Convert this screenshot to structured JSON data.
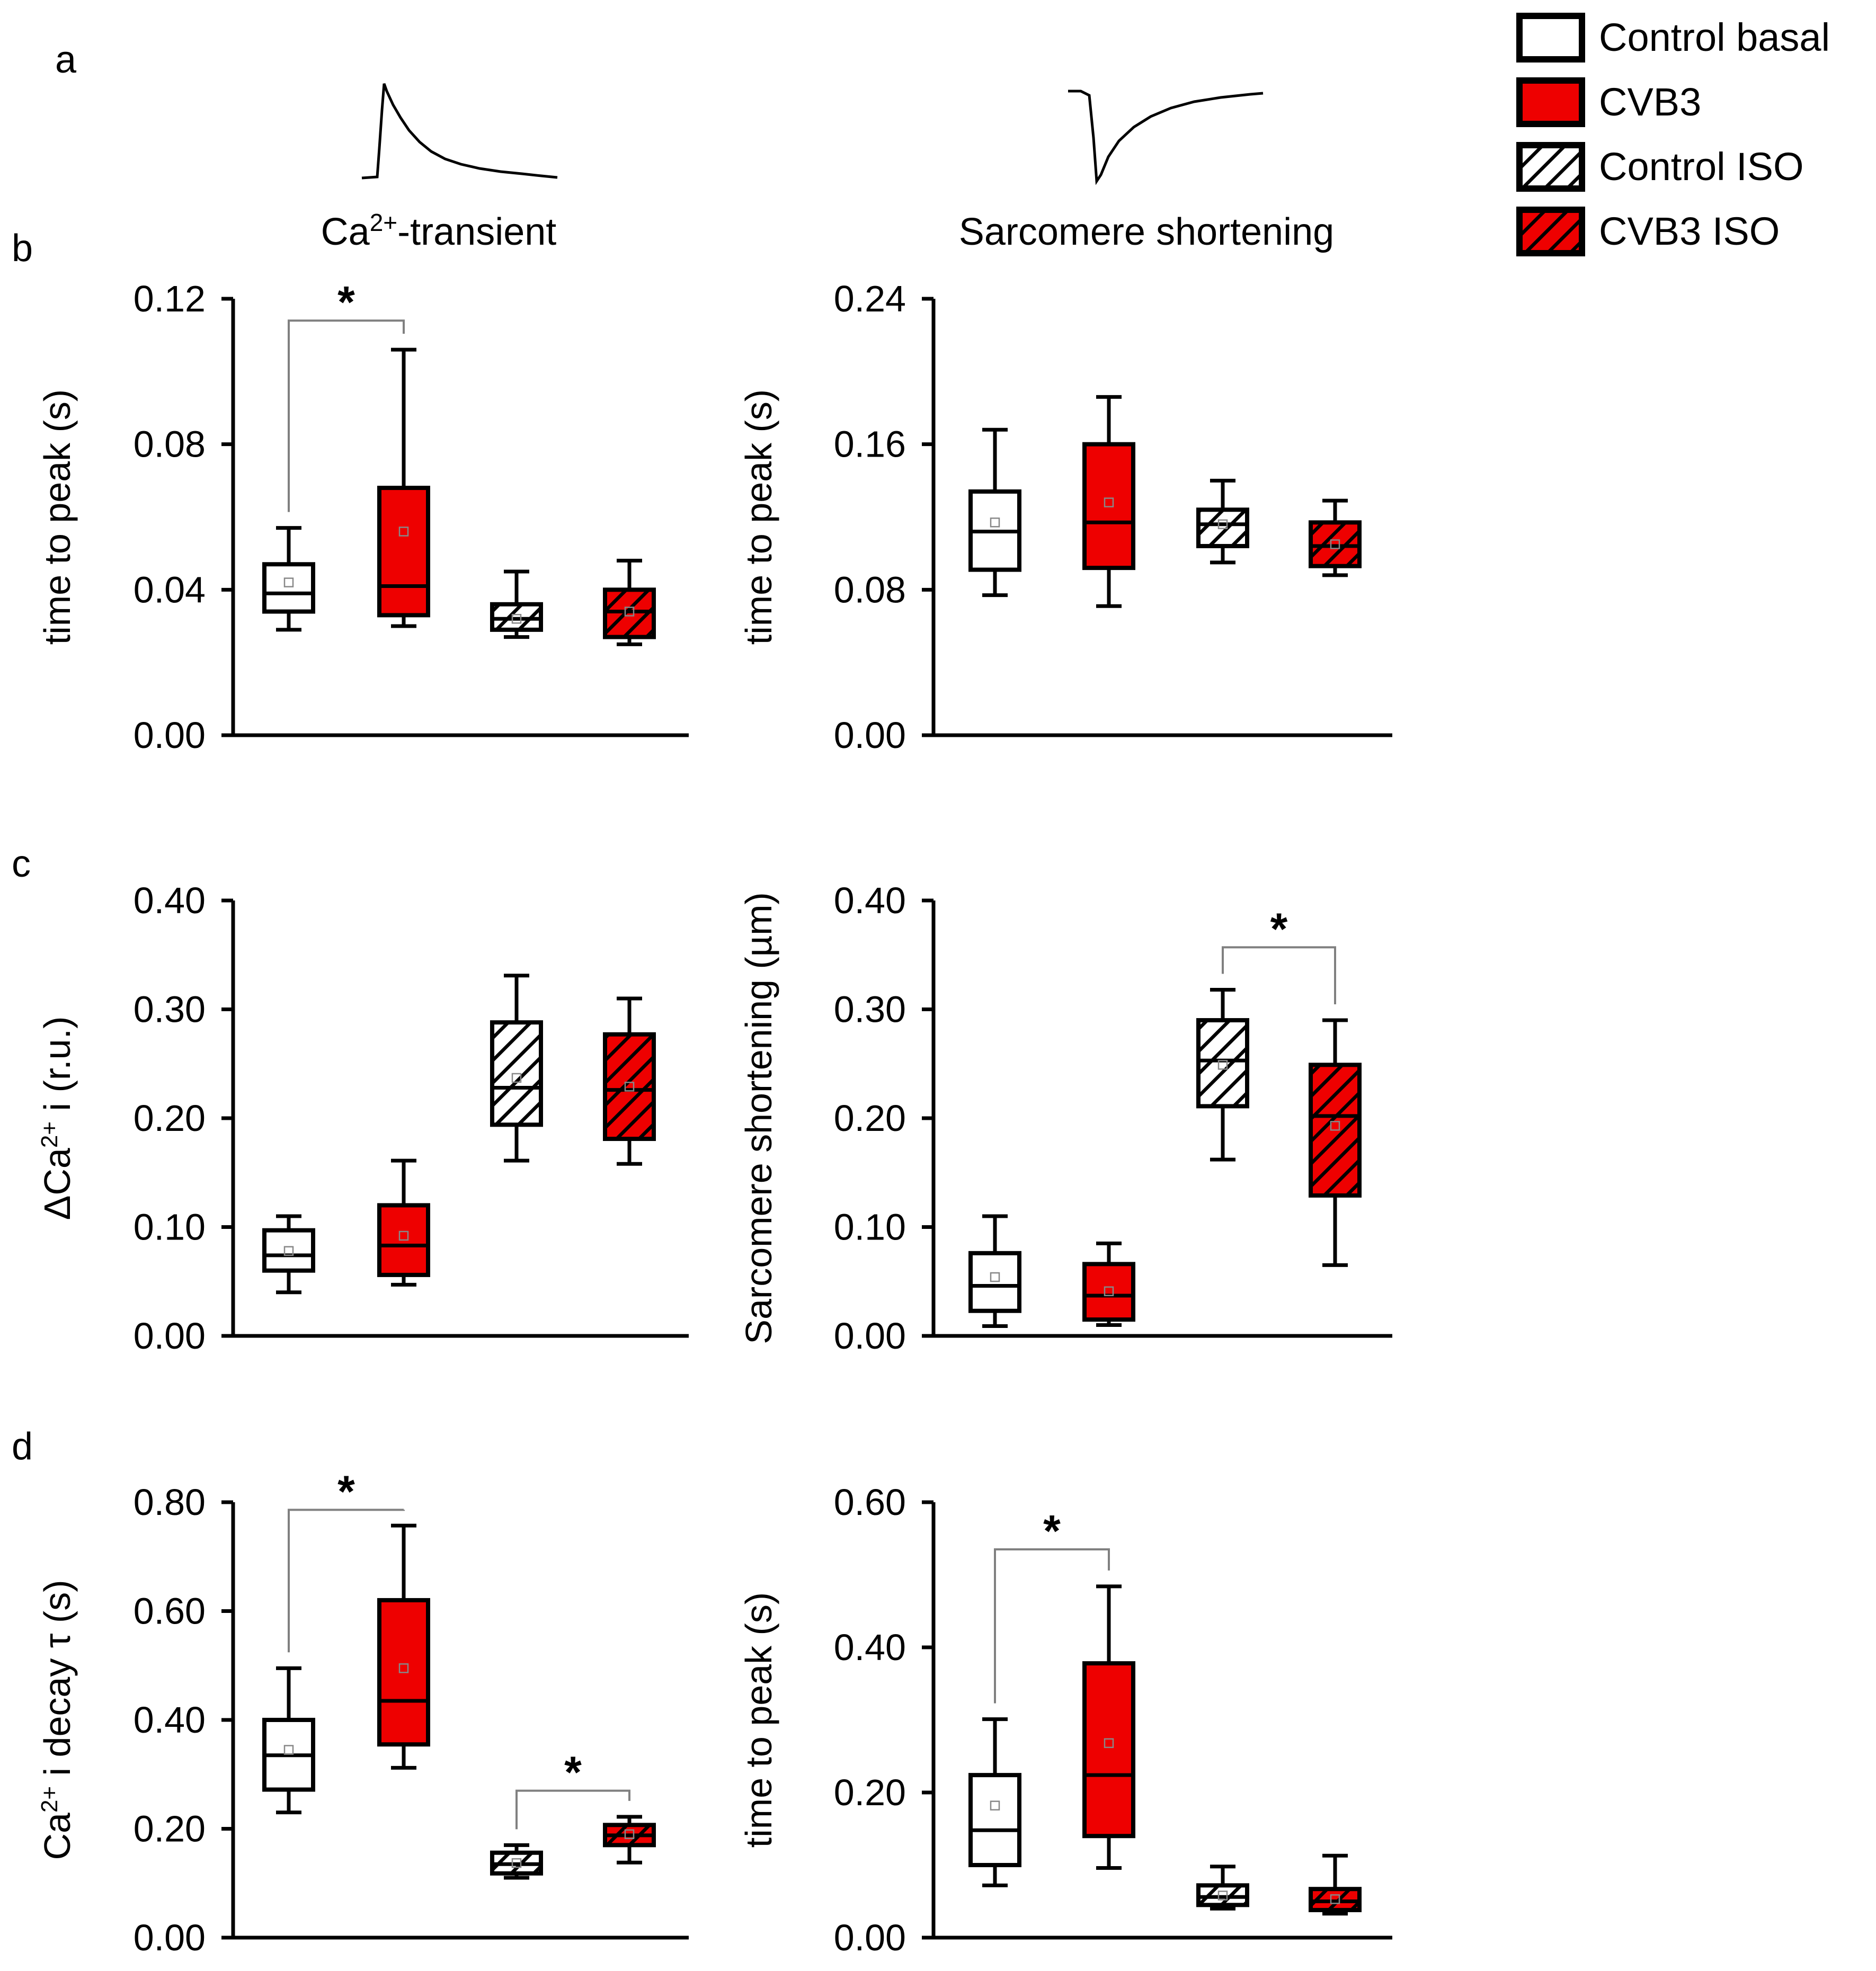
{
  "panel_labels": {
    "a": "a",
    "b": "b",
    "c": "c",
    "d": "d"
  },
  "column_titles": {
    "left_html": "Ca<tspan dy=\"-26\" font-size=\"46\">2+</tspan><tspan dy=\"26\">-transient</tspan>",
    "left": "Ca2+-transient",
    "right": "Sarcomere shortening"
  },
  "legend": [
    {
      "label": "Control basal",
      "fill": "#ffffff",
      "hatch": false
    },
    {
      "label": "CVB3",
      "fill": "#ee0000",
      "hatch": false
    },
    {
      "label": "Control ISO",
      "fill": "#ffffff",
      "hatch": true
    },
    {
      "label": "CVB3 ISO",
      "fill": "#ee0000",
      "hatch": true
    }
  ],
  "colors": {
    "control": "#ffffff",
    "cvb3": "#ee0000",
    "axis": "#000000",
    "hatch": "#000000",
    "bracket": "#808080"
  },
  "chart_data": [
    {
      "panel": "b",
      "column": "Ca2+-transient",
      "type": "box",
      "ylabel": "time to peak (s)",
      "ylim": [
        0,
        0.12
      ],
      "yticks": [
        "0.00",
        "0.04",
        "0.08",
        "0.12"
      ],
      "categories": [
        "Control basal",
        "CVB3",
        "Control ISO",
        "CVB3 ISO"
      ],
      "boxes": [
        {
          "whisker_low": 0.029,
          "q1": 0.034,
          "median": 0.039,
          "q3": 0.047,
          "whisker_high": 0.057,
          "mean": 0.042
        },
        {
          "whisker_low": 0.03,
          "q1": 0.033,
          "median": 0.041,
          "q3": 0.068,
          "whisker_high": 0.106,
          "mean": 0.056
        },
        {
          "whisker_low": 0.027,
          "q1": 0.029,
          "median": 0.032,
          "q3": 0.036,
          "whisker_high": 0.045,
          "mean": 0.032
        },
        {
          "whisker_low": 0.025,
          "q1": 0.027,
          "median": 0.034,
          "q3": 0.04,
          "whisker_high": 0.048,
          "mean": 0.034
        }
      ],
      "significance": [
        {
          "from": 0,
          "to": 1,
          "label": "*",
          "y": 0.114
        }
      ]
    },
    {
      "panel": "b",
      "column": "Sarcomere shortening",
      "type": "box",
      "ylabel": "time to peak (s)",
      "ylim": [
        0,
        0.24
      ],
      "yticks": [
        "0.00",
        "0.08",
        "0.16",
        "0.24"
      ],
      "categories": [
        "Control basal",
        "CVB3",
        "Control ISO",
        "CVB3 ISO"
      ],
      "boxes": [
        {
          "whisker_low": 0.077,
          "q1": 0.091,
          "median": 0.112,
          "q3": 0.134,
          "whisker_high": 0.168,
          "mean": 0.117
        },
        {
          "whisker_low": 0.071,
          "q1": 0.092,
          "median": 0.117,
          "q3": 0.16,
          "whisker_high": 0.186,
          "mean": 0.128
        },
        {
          "whisker_low": 0.095,
          "q1": 0.104,
          "median": 0.116,
          "q3": 0.124,
          "whisker_high": 0.14,
          "mean": 0.116
        },
        {
          "whisker_low": 0.088,
          "q1": 0.093,
          "median": 0.104,
          "q3": 0.117,
          "whisker_high": 0.129,
          "mean": 0.105
        }
      ],
      "significance": []
    },
    {
      "panel": "c",
      "column": "Ca2+-transient",
      "type": "box",
      "ylabel_html": "ΔCa<tspan dy=\"-24\" font-size=\"44\">2+</tspan><tspan dy=\"24\"> i (r.u.)</tspan>",
      "ylabel": "ΔCa2+ i (r.u.)",
      "ylim": [
        0,
        0.4
      ],
      "yticks": [
        "0.00",
        "0.10",
        "0.20",
        "0.30",
        "0.40"
      ],
      "categories": [
        "Control basal",
        "CVB3",
        "Control ISO",
        "CVB3 ISO"
      ],
      "boxes": [
        {
          "whisker_low": 0.04,
          "q1": 0.06,
          "median": 0.074,
          "q3": 0.097,
          "whisker_high": 0.11,
          "mean": 0.078
        },
        {
          "whisker_low": 0.047,
          "q1": 0.056,
          "median": 0.083,
          "q3": 0.12,
          "whisker_high": 0.161,
          "mean": 0.092
        },
        {
          "whisker_low": 0.161,
          "q1": 0.194,
          "median": 0.228,
          "q3": 0.288,
          "whisker_high": 0.331,
          "mean": 0.237
        },
        {
          "whisker_low": 0.158,
          "q1": 0.181,
          "median": 0.226,
          "q3": 0.277,
          "whisker_high": 0.31,
          "mean": 0.229
        }
      ],
      "significance": []
    },
    {
      "panel": "c",
      "column": "Sarcomere shortening",
      "type": "box",
      "ylabel": "Sarcomere shortening (µm)",
      "ylim": [
        0,
        0.4
      ],
      "yticks": [
        "0.00",
        "0.10",
        "0.20",
        "0.30",
        "0.40"
      ],
      "categories": [
        "Control basal",
        "CVB3",
        "Control ISO",
        "CVB3 ISO"
      ],
      "boxes": [
        {
          "whisker_low": 0.009,
          "q1": 0.023,
          "median": 0.046,
          "q3": 0.076,
          "whisker_high": 0.11,
          "mean": 0.054
        },
        {
          "whisker_low": 0.01,
          "q1": 0.015,
          "median": 0.037,
          "q3": 0.066,
          "whisker_high": 0.085,
          "mean": 0.041
        },
        {
          "whisker_low": 0.162,
          "q1": 0.211,
          "median": 0.253,
          "q3": 0.29,
          "whisker_high": 0.318,
          "mean": 0.249
        },
        {
          "whisker_low": 0.065,
          "q1": 0.129,
          "median": 0.202,
          "q3": 0.249,
          "whisker_high": 0.29,
          "mean": 0.193
        }
      ],
      "significance": [
        {
          "from": 2,
          "to": 3,
          "label": "*",
          "y": 0.357
        }
      ]
    },
    {
      "panel": "d",
      "column": "Ca2+-transient",
      "type": "box",
      "ylabel_html": "Ca<tspan dy=\"-24\" font-size=\"44\">2+</tspan><tspan dy=\"24\"> i decay τ (s)</tspan>",
      "ylabel": "Ca2+ i decay τ (s)",
      "ylim": [
        0,
        0.8
      ],
      "yticks": [
        "0.00",
        "0.20",
        "0.40",
        "0.60",
        "0.80"
      ],
      "categories": [
        "Control basal",
        "CVB3",
        "Control ISO",
        "CVB3 ISO"
      ],
      "boxes": [
        {
          "whisker_low": 0.23,
          "q1": 0.272,
          "median": 0.335,
          "q3": 0.4,
          "whisker_high": 0.495,
          "mean": 0.345
        },
        {
          "whisker_low": 0.312,
          "q1": 0.355,
          "median": 0.435,
          "q3": 0.62,
          "whisker_high": 0.757,
          "mean": 0.495
        },
        {
          "whisker_low": 0.11,
          "q1": 0.118,
          "median": 0.135,
          "q3": 0.156,
          "whisker_high": 0.17,
          "mean": 0.137
        },
        {
          "whisker_low": 0.138,
          "q1": 0.17,
          "median": 0.188,
          "q3": 0.207,
          "whisker_high": 0.222,
          "mean": 0.19
        }
      ],
      "significance": [
        {
          "from": 0,
          "to": 1,
          "label": "*",
          "y": 0.786
        },
        {
          "from": 2,
          "to": 3,
          "label": "*",
          "y": 0.27
        }
      ]
    },
    {
      "panel": "d",
      "column": "Sarcomere shortening",
      "type": "box",
      "ylabel": "time to peak (s)",
      "ylim": [
        0,
        0.6
      ],
      "yticks": [
        "0.00",
        "0.20",
        "0.40",
        "0.60"
      ],
      "categories": [
        "Control basal",
        "CVB3",
        "Control ISO",
        "CVB3 ISO"
      ],
      "boxes": [
        {
          "whisker_low": 0.072,
          "q1": 0.1,
          "median": 0.148,
          "q3": 0.224,
          "whisker_high": 0.301,
          "mean": 0.182
        },
        {
          "whisker_low": 0.096,
          "q1": 0.14,
          "median": 0.224,
          "q3": 0.378,
          "whisker_high": 0.484,
          "mean": 0.268
        },
        {
          "whisker_low": 0.04,
          "q1": 0.045,
          "median": 0.056,
          "q3": 0.072,
          "whisker_high": 0.098,
          "mean": 0.058
        },
        {
          "whisker_low": 0.033,
          "q1": 0.038,
          "median": 0.05,
          "q3": 0.067,
          "whisker_high": 0.113,
          "mean": 0.053
        }
      ],
      "significance": [
        {
          "from": 0,
          "to": 1,
          "label": "*",
          "y": 0.535
        }
      ]
    }
  ]
}
